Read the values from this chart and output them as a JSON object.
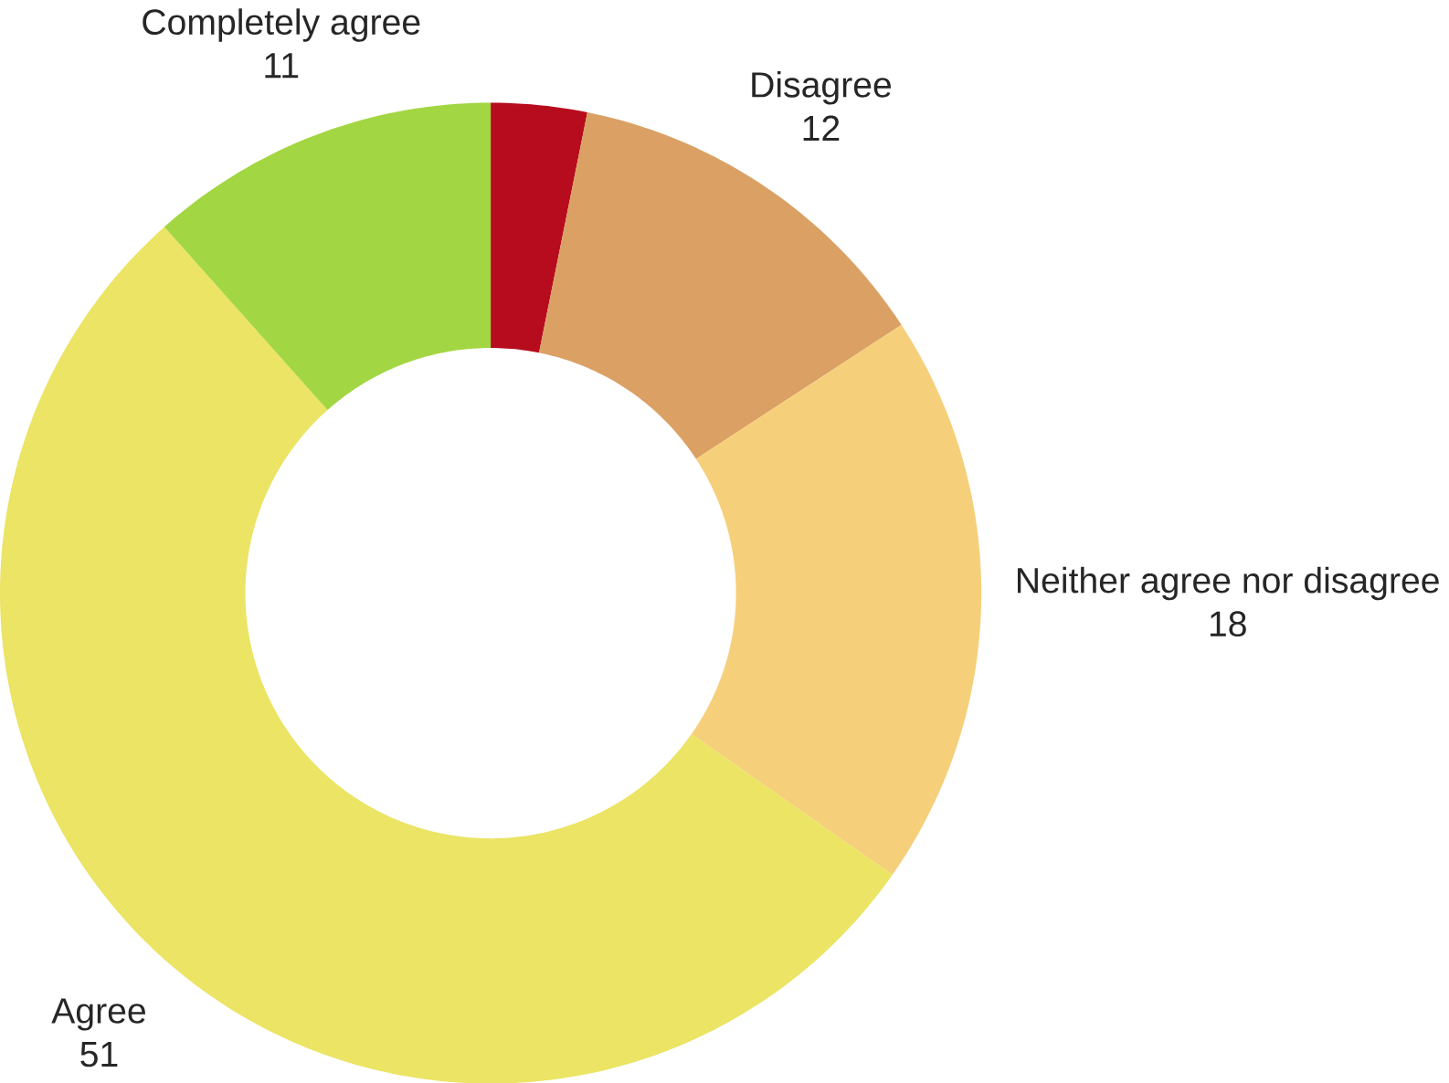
{
  "chart_data": {
    "type": "donut",
    "categories": [
      null,
      "Disagree",
      "Neither agree nor disagree",
      "Agree",
      "Completely agree"
    ],
    "values": [
      3,
      12,
      18,
      51,
      11
    ],
    "value_labels": [
      null,
      "12",
      "18",
      "51",
      "11"
    ],
    "colors": [
      "#b70c1e",
      "#dba064",
      "#f6cf7a",
      "#ebe464",
      "#a2d643"
    ]
  }
}
